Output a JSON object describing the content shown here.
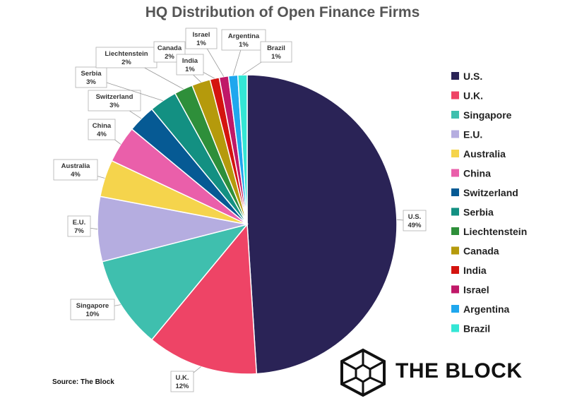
{
  "chart_data": {
    "type": "pie",
    "title": "HQ Distribution of Open Finance Firms",
    "slices": [
      {
        "name": "U.S.",
        "value": 49,
        "label": "49%",
        "color": "#2a2356"
      },
      {
        "name": "U.K.",
        "value": 12,
        "label": "12%",
        "color": "#ee4466"
      },
      {
        "name": "Singapore",
        "value": 10,
        "label": "10%",
        "color": "#3fbfae"
      },
      {
        "name": "E.U.",
        "value": 7,
        "label": "7%",
        "color": "#b5ade0"
      },
      {
        "name": "Australia",
        "value": 4,
        "label": "4%",
        "color": "#f5d44c"
      },
      {
        "name": "China",
        "value": 4,
        "label": "4%",
        "color": "#ea5faa"
      },
      {
        "name": "Switzerland",
        "value": 3,
        "label": "3%",
        "color": "#065a94"
      },
      {
        "name": "Serbia",
        "value": 3,
        "label": "3%",
        "color": "#139082"
      },
      {
        "name": "Liechtenstein",
        "value": 2,
        "label": "2%",
        "color": "#2e8f3a"
      },
      {
        "name": "Canada",
        "value": 2,
        "label": "2%",
        "color": "#b59a0c"
      },
      {
        "name": "India",
        "value": 1,
        "label": "1%",
        "color": "#d4140f"
      },
      {
        "name": "Israel",
        "value": 1,
        "label": "1%",
        "color": "#c01868"
      },
      {
        "name": "Argentina",
        "value": 1,
        "label": "1%",
        "color": "#1fa7ee"
      },
      {
        "name": "Brazil",
        "value": 1,
        "label": "1%",
        "color": "#34e6d5"
      }
    ],
    "legend_position": "right"
  },
  "footer": {
    "source": "Source: The Block",
    "brand": "THE BLOCK"
  }
}
